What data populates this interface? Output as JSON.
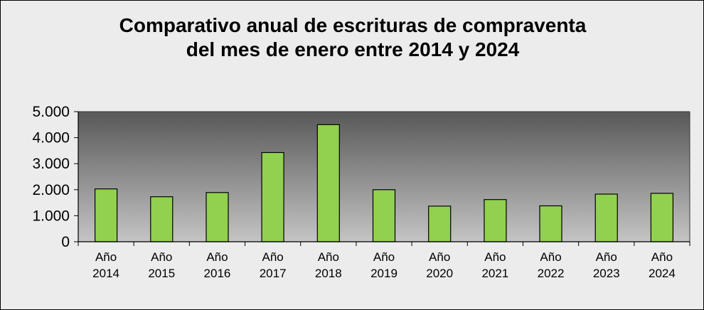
{
  "chart_data": {
    "type": "bar",
    "title_line1": "Comparativo anual de escrituras de compraventa",
    "title_line2": "del mes de enero entre 2014 y 2024",
    "xlabel": "",
    "ylabel": "",
    "ylim": [
      0,
      5000
    ],
    "y_ticks": [
      0,
      1000,
      2000,
      3000,
      4000,
      5000
    ],
    "y_tick_labels": [
      "0",
      "1.000",
      "2.000",
      "3.000",
      "4.000",
      "5.000"
    ],
    "categories": [
      [
        "Año",
        "2014"
      ],
      [
        "Año",
        "2015"
      ],
      [
        "Año",
        "2016"
      ],
      [
        "Año",
        "2017"
      ],
      [
        "Año",
        "2018"
      ],
      [
        "Año",
        "2019"
      ],
      [
        "Año",
        "2020"
      ],
      [
        "Año",
        "2021"
      ],
      [
        "Año",
        "2022"
      ],
      [
        "Año",
        "2023"
      ],
      [
        "Año",
        "2024"
      ]
    ],
    "values": [
      2030,
      1730,
      1890,
      3430,
      4500,
      2000,
      1370,
      1620,
      1380,
      1830,
      1860
    ],
    "grid": false,
    "legend": "none",
    "colors": {
      "bar_fill": "#92d050",
      "bar_stroke": "#000000",
      "plot_top": "#585858",
      "plot_bottom": "#c4c4c4",
      "frame_bg": "#ececec"
    }
  }
}
